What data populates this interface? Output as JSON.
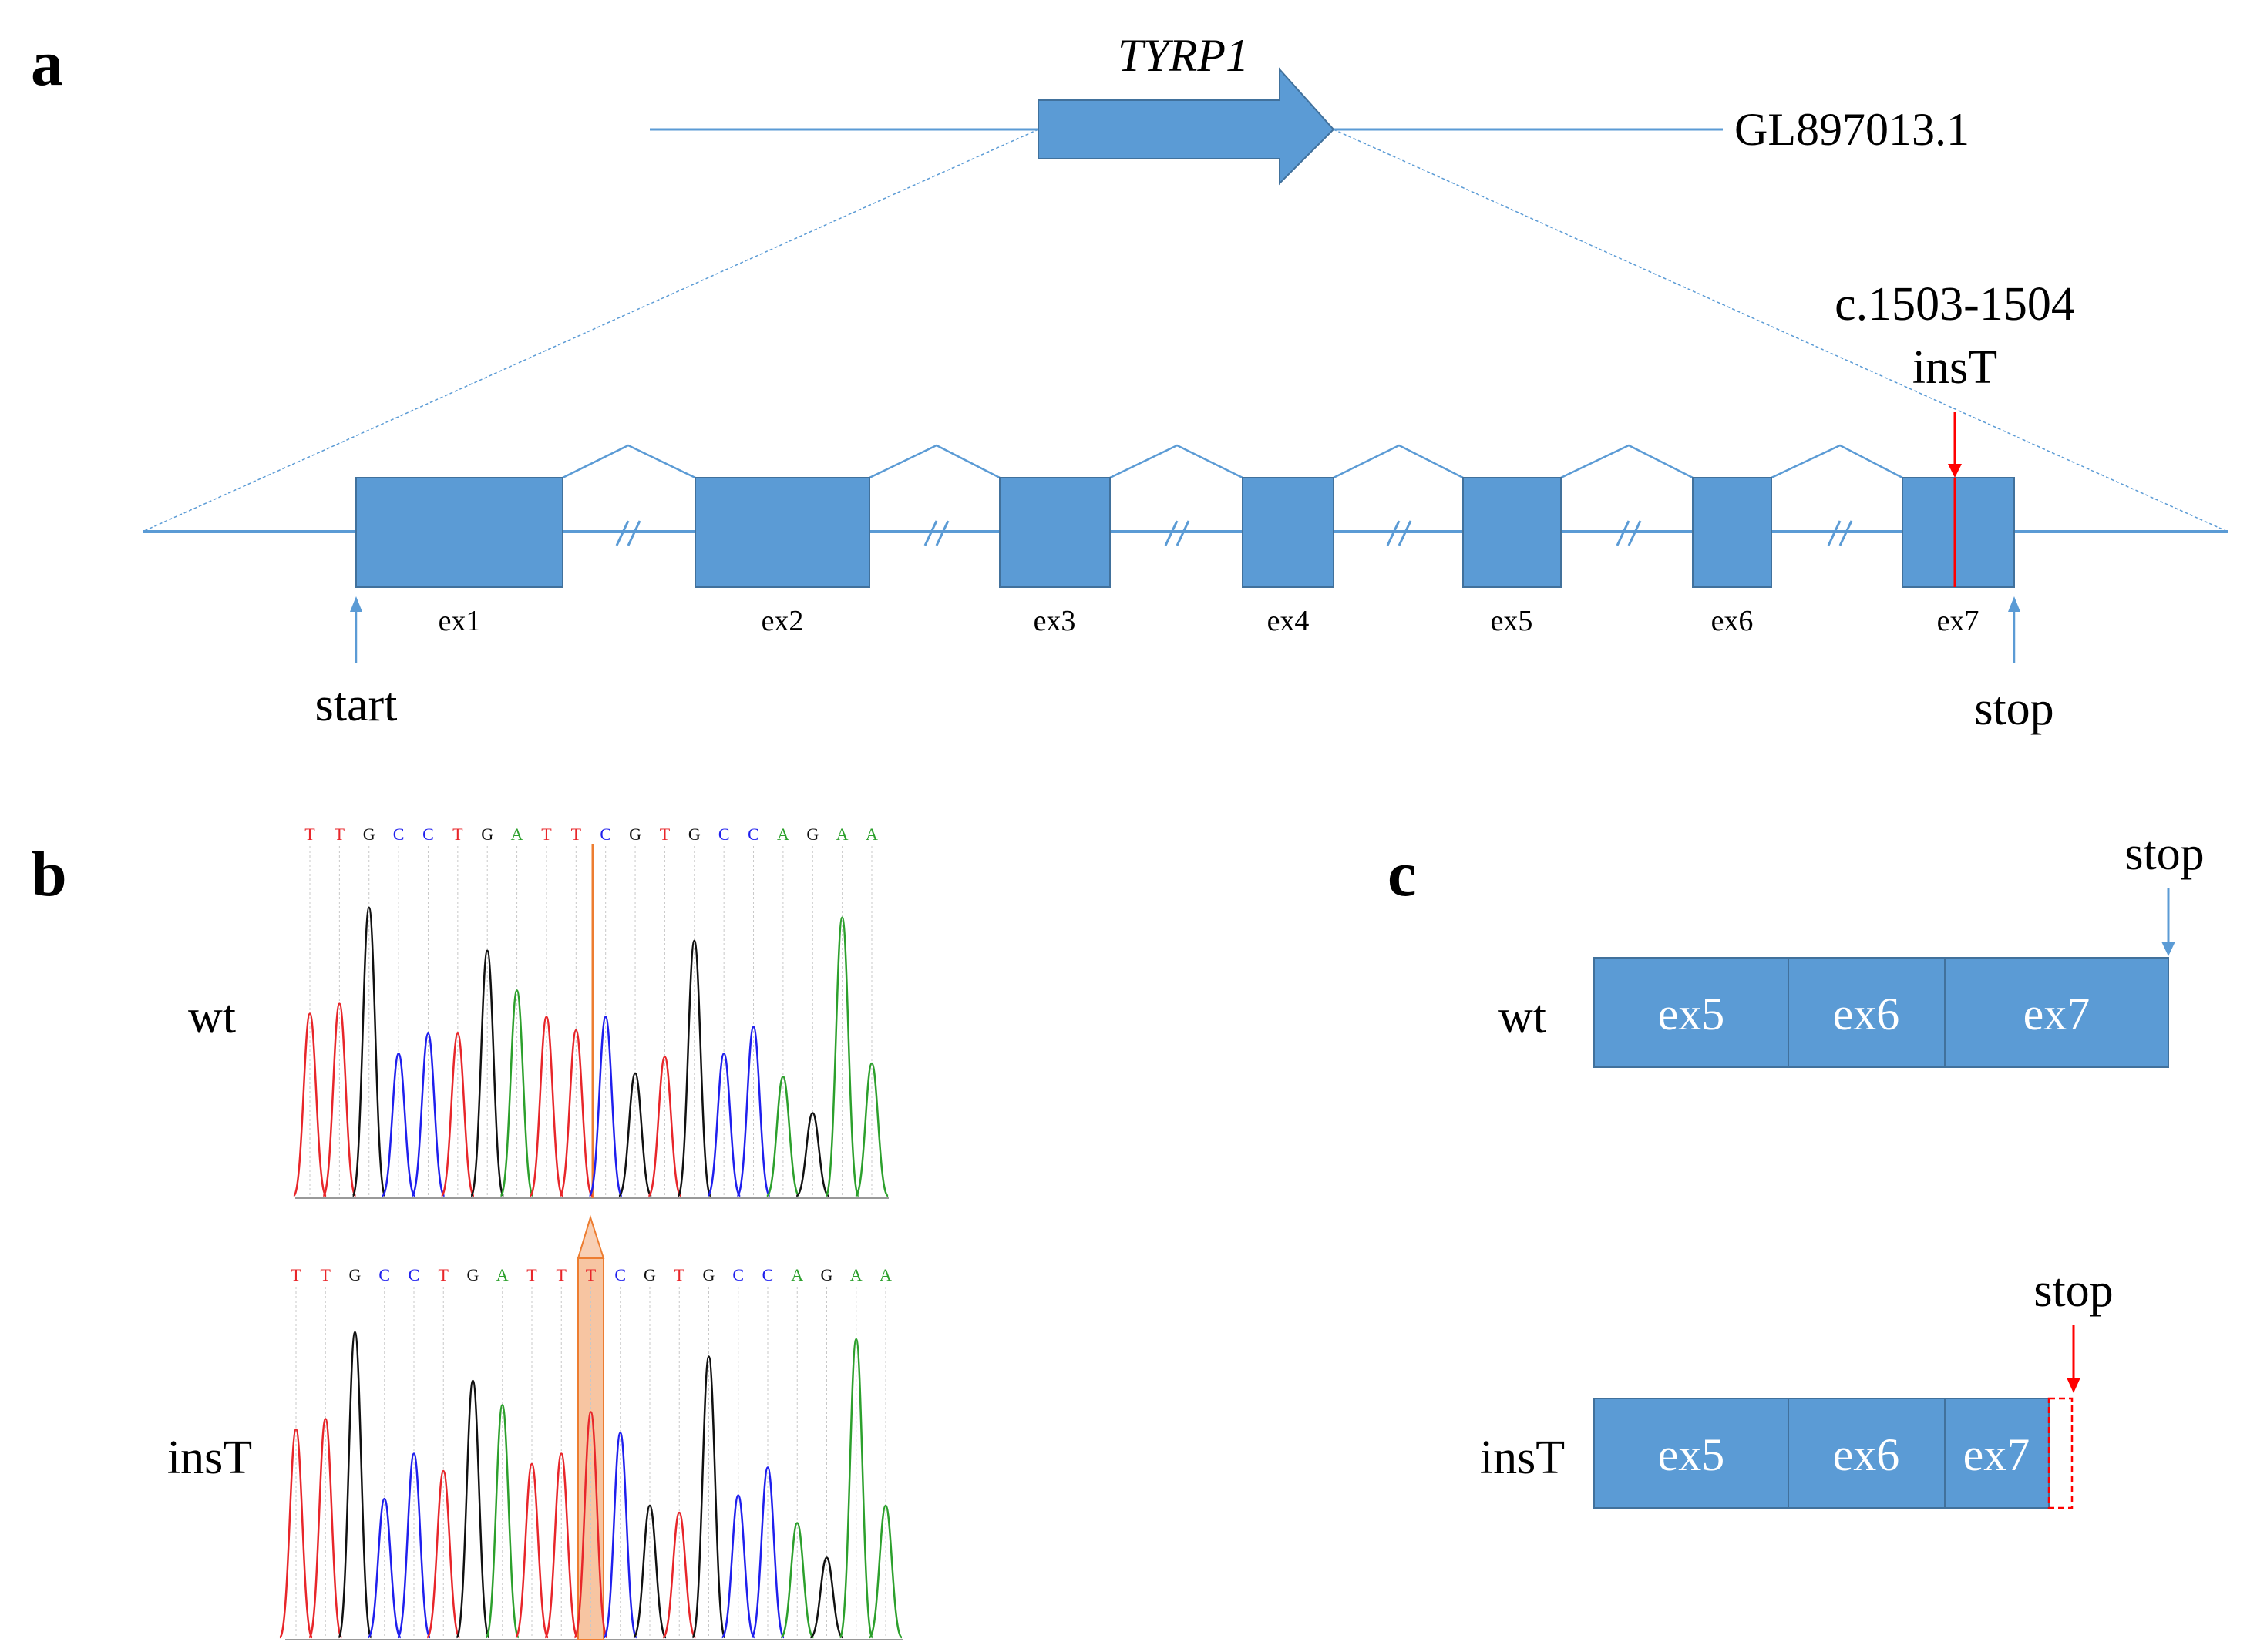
{
  "colors": {
    "exon_fill": "#5B9BD5",
    "exon_stroke": "#41719C",
    "line": "#5B9BD5",
    "mutation": "#FF0000",
    "highlight": "#F4B183",
    "highlight_stroke": "#ED7D31",
    "trace_A": "#2CA02C",
    "trace_C": "#1F1FEE",
    "trace_G": "#111111",
    "trace_T": "#E8262A"
  },
  "panel_a": {
    "letter": "a",
    "gene_name": "TYRP1",
    "scaffold": "GL897013.1",
    "mutation_label_line1": "c.1503-1504",
    "mutation_label_line2": "insT",
    "start_label": "start",
    "stop_label": "stop",
    "exons": [
      "ex1",
      "ex2",
      "ex3",
      "ex4",
      "ex5",
      "ex6",
      "ex7"
    ]
  },
  "panel_b": {
    "letter": "b",
    "wt_label": "wt",
    "ins_label": "insT",
    "wt_sequence": [
      "T",
      "T",
      "G",
      "C",
      "C",
      "T",
      "G",
      "A",
      "T",
      "T",
      "C",
      "G",
      "T",
      "G",
      "C",
      "C",
      "A",
      "G",
      "A",
      "A"
    ],
    "ins_sequence": [
      "T",
      "T",
      "G",
      "C",
      "C",
      "T",
      "G",
      "A",
      "T",
      "T",
      "T",
      "C",
      "G",
      "T",
      "G",
      "C",
      "C",
      "A",
      "G",
      "A",
      "A"
    ]
  },
  "panel_c": {
    "letter": "c",
    "wt_label": "wt",
    "ins_label": "insT",
    "stop_label_wt": "stop",
    "stop_label_ins": "stop",
    "wt_boxes": [
      "ex5",
      "ex6",
      "ex7"
    ],
    "ins_boxes": [
      "ex5",
      "ex6",
      "ex7"
    ]
  }
}
